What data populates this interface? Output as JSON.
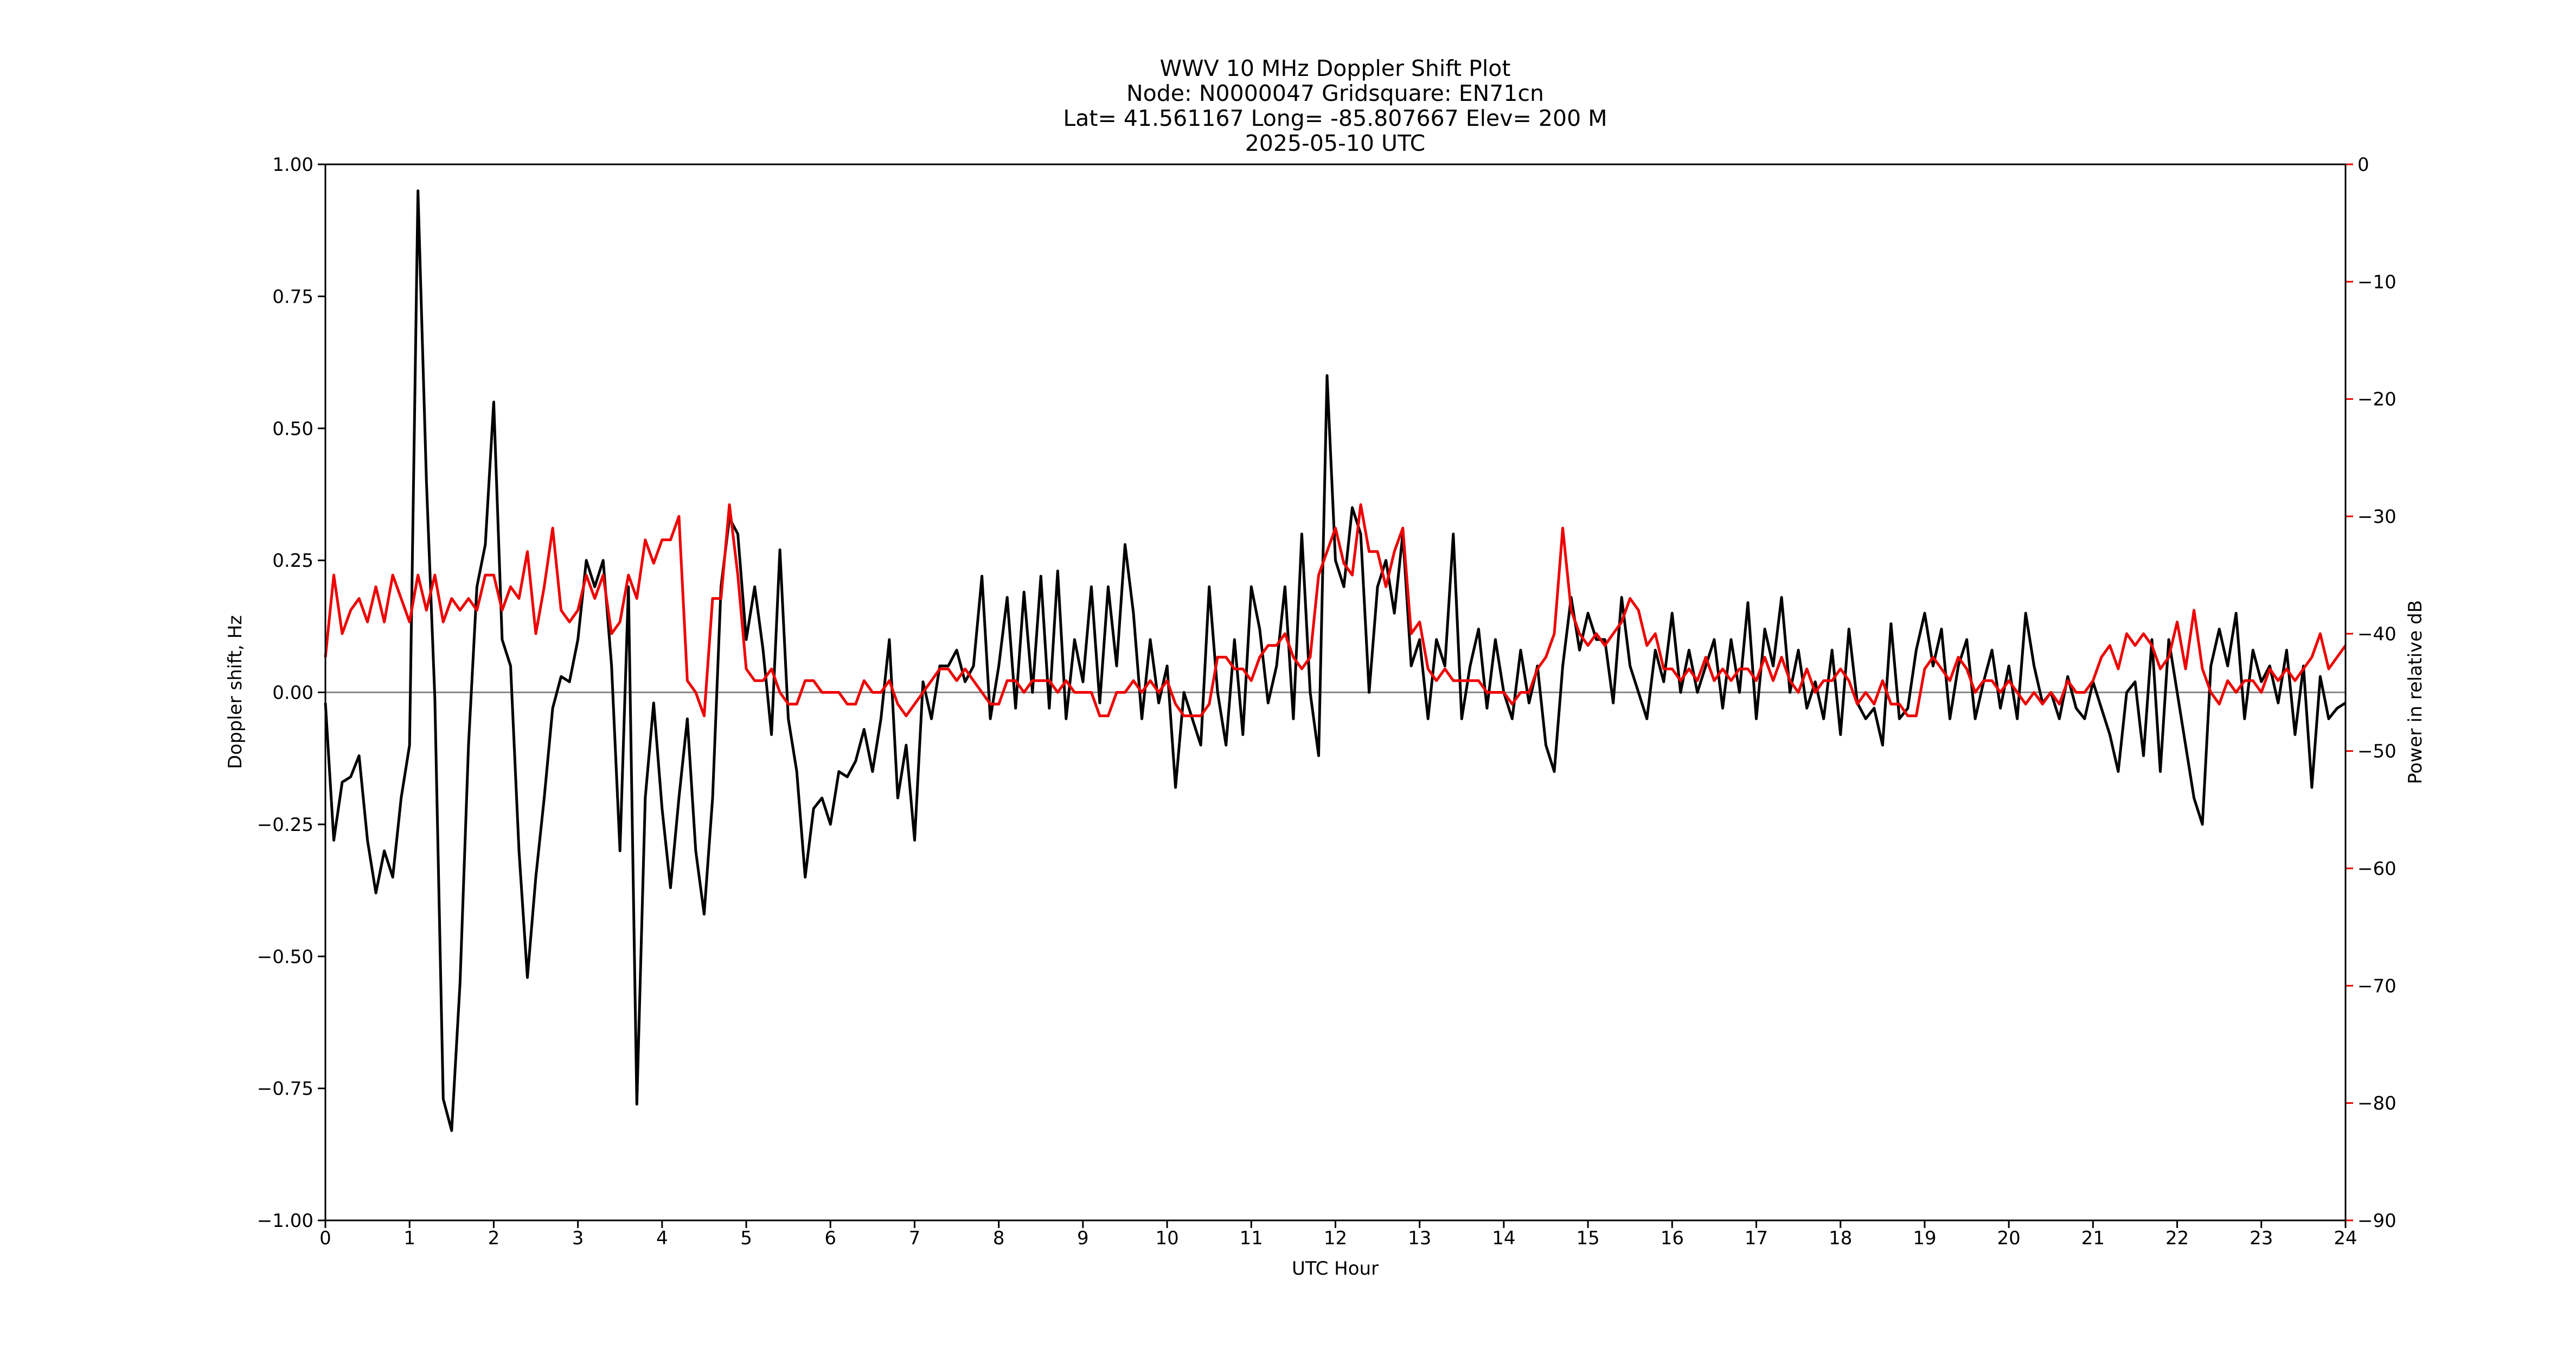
{
  "chart_data": {
    "type": "line",
    "title": [
      "WWV 10 MHz Doppler Shift Plot",
      "Node:  N0000047     Gridsquare:  EN71cn",
      "Lat= 41.561167    Long= -85.807667    Elev= 200 M",
      "2025-05-10  UTC"
    ],
    "x_label": "UTC Hour",
    "y_label": "Doppler shift, Hz",
    "y2_label": "Power in relative dB",
    "y2_color": "#ee0000",
    "xlim": [
      0,
      24
    ],
    "xticks": [
      0,
      1,
      2,
      3,
      4,
      5,
      6,
      7,
      8,
      9,
      10,
      11,
      12,
      13,
      14,
      15,
      16,
      17,
      18,
      19,
      20,
      21,
      22,
      23,
      24
    ],
    "ylim": [
      -1,
      1
    ],
    "yticks": [
      {
        "value": -1,
        "label": "−1.00"
      },
      {
        "value": -0.75,
        "label": "−0.75"
      },
      {
        "value": -0.5,
        "label": "−0.50"
      },
      {
        "value": -0.25,
        "label": "−0.25"
      },
      {
        "value": 0,
        "label": "0.00"
      },
      {
        "value": 0.25,
        "label": "0.25"
      },
      {
        "value": 0.5,
        "label": "0.50"
      },
      {
        "value": 0.75,
        "label": "0.75"
      },
      {
        "value": 1,
        "label": "1.00"
      }
    ],
    "y2lim": [
      -90,
      0
    ],
    "y2ticks": [
      {
        "value": -90,
        "label": "−90"
      },
      {
        "value": -80,
        "label": "−80"
      },
      {
        "value": -70,
        "label": "−70"
      },
      {
        "value": -60,
        "label": "−60"
      },
      {
        "value": -50,
        "label": "−50"
      },
      {
        "value": -40,
        "label": "−40"
      },
      {
        "value": -30,
        "label": "−30"
      },
      {
        "value": -20,
        "label": "−20"
      },
      {
        "value": -10,
        "label": "−10"
      },
      0
    ],
    "x": [
      0,
      0.1,
      0.2,
      0.3,
      0.4,
      0.5,
      0.6,
      0.7,
      0.8,
      0.9,
      1,
      1.1,
      1.2,
      1.3,
      1.4,
      1.5,
      1.6,
      1.7,
      1.8,
      1.9,
      2,
      2.1,
      2.2,
      2.3,
      2.4,
      2.5,
      2.6,
      2.7,
      2.8,
      2.9,
      3,
      3.1,
      3.2,
      3.3,
      3.4,
      3.5,
      3.6,
      3.7,
      3.8,
      3.9,
      4,
      4.1,
      4.2,
      4.3,
      4.4,
      4.5,
      4.6,
      4.7,
      4.8,
      4.9,
      5,
      5.1,
      5.2,
      5.3,
      5.4,
      5.5,
      5.6,
      5.7,
      5.8,
      5.9,
      6,
      6.1,
      6.2,
      6.3,
      6.4,
      6.5,
      6.6,
      6.7,
      6.8,
      6.9,
      7,
      7.1,
      7.2,
      7.3,
      7.4,
      7.5,
      7.6,
      7.7,
      7.8,
      7.9,
      8,
      8.1,
      8.2,
      8.3,
      8.4,
      8.5,
      8.6,
      8.7,
      8.8,
      8.9,
      9,
      9.1,
      9.2,
      9.3,
      9.4,
      9.5,
      9.6,
      9.7,
      9.8,
      9.9,
      10,
      10.1,
      10.2,
      10.3,
      10.4,
      10.5,
      10.6,
      10.7,
      10.8,
      10.9,
      11,
      11.1,
      11.2,
      11.3,
      11.4,
      11.5,
      11.6,
      11.7,
      11.8,
      11.9,
      12,
      12.1,
      12.2,
      12.3,
      12.4,
      12.5,
      12.6,
      12.7,
      12.8,
      12.9,
      13,
      13.1,
      13.2,
      13.3,
      13.4,
      13.5,
      13.6,
      13.7,
      13.8,
      13.9,
      14,
      14.1,
      14.2,
      14.3,
      14.4,
      14.5,
      14.6,
      14.7,
      14.8,
      14.9,
      15,
      15.1,
      15.2,
      15.3,
      15.4,
      15.5,
      15.6,
      15.7,
      15.8,
      15.9,
      16,
      16.1,
      16.2,
      16.3,
      16.4,
      16.5,
      16.6,
      16.7,
      16.8,
      16.9,
      17,
      17.1,
      17.2,
      17.3,
      17.4,
      17.5,
      17.6,
      17.7,
      17.8,
      17.9,
      18,
      18.1,
      18.2,
      18.3,
      18.4,
      18.5,
      18.6,
      18.7,
      18.8,
      18.9,
      19,
      19.1,
      19.2,
      19.3,
      19.4,
      19.5,
      19.6,
      19.7,
      19.8,
      19.9,
      20,
      20.1,
      20.2,
      20.3,
      20.4,
      20.5,
      20.6,
      20.7,
      20.8,
      20.9,
      21,
      21.1,
      21.2,
      21.3,
      21.4,
      21.5,
      21.6,
      21.7,
      21.8,
      21.9,
      22,
      22.1,
      22.2,
      22.3,
      22.4,
      22.5,
      22.6,
      22.7,
      22.8,
      22.9,
      23,
      23.1,
      23.2,
      23.3,
      23.4,
      23.5,
      23.6,
      23.7,
      23.8,
      23.9,
      24
    ],
    "series": [
      {
        "color": "#000000",
        "values": [
          -0.02,
          -0.28,
          -0.17,
          -0.16,
          -0.12,
          -0.28,
          -0.38,
          -0.3,
          -0.35,
          -0.2,
          -0.1,
          0.95,
          0.4,
          -0.01,
          -0.77,
          -0.83,
          -0.55,
          -0.1,
          0.2,
          0.28,
          0.55,
          0.1,
          0.05,
          -0.3,
          -0.54,
          -0.35,
          -0.2,
          -0.03,
          0.03,
          0.02,
          0.1,
          0.25,
          0.2,
          0.25,
          0.05,
          -0.3,
          0.2,
          -0.78,
          -0.2,
          -0.02,
          -0.22,
          -0.37,
          -0.2,
          -0.05,
          -0.3,
          -0.42,
          -0.2,
          0.2,
          0.33,
          0.3,
          0.1,
          0.2,
          0.08,
          -0.08,
          0.27,
          -0.05,
          -0.15,
          -0.35,
          -0.22,
          -0.2,
          -0.25,
          -0.15,
          -0.16,
          -0.13,
          -0.07,
          -0.15,
          -0.05,
          0.1,
          -0.2,
          -0.1,
          -0.28,
          0.02,
          -0.05,
          0.05,
          0.05,
          0.08,
          0.02,
          0.05,
          0.22,
          -0.05,
          0.05,
          0.18,
          -0.03,
          0.19,
          0,
          0.22,
          -0.03,
          0.23,
          -0.05,
          0.1,
          0.02,
          0.2,
          -0.02,
          0.2,
          0.05,
          0.28,
          0.15,
          -0.05,
          0.1,
          -0.02,
          0.05,
          -0.18,
          0,
          -0.05,
          -0.1,
          0.2,
          0,
          -0.1,
          0.1,
          -0.08,
          0.2,
          0.12,
          -0.02,
          0.05,
          0.2,
          -0.05,
          0.3,
          0,
          -0.12,
          0.6,
          0.25,
          0.2,
          0.35,
          0.3,
          0,
          0.2,
          0.25,
          0.15,
          0.3,
          0.05,
          0.1,
          -0.05,
          0.1,
          0.05,
          0.3,
          -0.05,
          0.05,
          0.12,
          -0.03,
          0.1,
          0,
          -0.05,
          0.08,
          -0.02,
          0.05,
          -0.1,
          -0.15,
          0.05,
          0.18,
          0.08,
          0.15,
          0.1,
          0.1,
          -0.02,
          0.18,
          0.05,
          0,
          -0.05,
          0.08,
          0.02,
          0.15,
          0,
          0.08,
          0,
          0.05,
          0.1,
          -0.03,
          0.1,
          0,
          0.17,
          -0.05,
          0.12,
          0.05,
          0.18,
          0,
          0.08,
          -0.03,
          0.02,
          -0.05,
          0.08,
          -0.08,
          0.12,
          -0.02,
          -0.05,
          -0.03,
          -0.1,
          0.13,
          -0.05,
          -0.03,
          0.08,
          0.15,
          0.05,
          0.12,
          -0.05,
          0.05,
          0.1,
          -0.05,
          0.02,
          0.08,
          -0.03,
          0.05,
          -0.05,
          0.15,
          0.05,
          -0.02,
          0,
          -0.05,
          0.03,
          -0.03,
          -0.05,
          0.02,
          -0.03,
          -0.08,
          -0.15,
          0,
          0.02,
          -0.12,
          0.1,
          -0.15,
          0.1,
          0,
          -0.1,
          -0.2,
          -0.25,
          0.05,
          0.12,
          0.05,
          0.15,
          -0.05,
          0.08,
          0.02,
          0.05,
          -0.02,
          0.08,
          -0.08,
          0.05,
          -0.18,
          0.03,
          -0.05,
          -0.03,
          -0.02
        ]
      },
      {
        "color": "#ee0000",
        "axis": "y2",
        "values": [
          -42,
          -35,
          -40,
          -38,
          -37,
          -39,
          -36,
          -39,
          -35,
          -37,
          -39,
          -35,
          -38,
          -35,
          -39,
          -37,
          -38,
          -37,
          -38,
          -35,
          -35,
          -38,
          -36,
          -37,
          -33,
          -40,
          -36,
          -31,
          -38,
          -39,
          -38,
          -35,
          -37,
          -35,
          -40,
          -39,
          -35,
          -37,
          -32,
          -34,
          -32,
          -32,
          -30,
          -44,
          -45,
          -47,
          -37,
          -37,
          -29,
          -35,
          -43,
          -44,
          -44,
          -43,
          -45,
          -46,
          -46,
          -44,
          -44,
          -45,
          -45,
          -45,
          -46,
          -46,
          -44,
          -45,
          -45,
          -44,
          -46,
          -47,
          -46,
          -45,
          -44,
          -43,
          -43,
          -44,
          -43,
          -44,
          -45,
          -46,
          -46,
          -44,
          -44,
          -45,
          -44,
          -44,
          -44,
          -45,
          -44,
          -45,
          -45,
          -45,
          -47,
          -47,
          -45,
          -45,
          -44,
          -45,
          -44,
          -45,
          -44,
          -46,
          -47,
          -47,
          -47,
          -46,
          -42,
          -42,
          -43,
          -43,
          -44,
          -42,
          -41,
          -41,
          -40,
          -42,
          -43,
          -42,
          -35,
          -33,
          -31,
          -34,
          -35,
          -29,
          -33,
          -33,
          -36,
          -33,
          -31,
          -40,
          -39,
          -43,
          -44,
          -43,
          -44,
          -44,
          -44,
          -44,
          -45,
          -45,
          -45,
          -46,
          -45,
          -45,
          -43,
          -42,
          -40,
          -31,
          -38,
          -40,
          -41,
          -40,
          -41,
          -40,
          -39,
          -37,
          -38,
          -41,
          -40,
          -43,
          -43,
          -44,
          -43,
          -44,
          -42,
          -44,
          -43,
          -44,
          -43,
          -43,
          -44,
          -42,
          -44,
          -42,
          -44,
          -45,
          -43,
          -45,
          -44,
          -44,
          -43,
          -44,
          -46,
          -45,
          -46,
          -44,
          -46,
          -46,
          -47,
          -47,
          -43,
          -42,
          -43,
          -44,
          -42,
          -43,
          -45,
          -44,
          -44,
          -45,
          -44,
          -45,
          -46,
          -45,
          -46,
          -45,
          -46,
          -44,
          -45,
          -45,
          -44,
          -42,
          -41,
          -43,
          -40,
          -41,
          -40,
          -41,
          -43,
          -42,
          -39,
          -43,
          -38,
          -43,
          -45,
          -46,
          -44,
          -45,
          -44,
          -44,
          -45,
          -43,
          -44,
          -43,
          -44,
          -43,
          -42,
          -40,
          -43,
          -42,
          -41
        ]
      }
    ]
  }
}
